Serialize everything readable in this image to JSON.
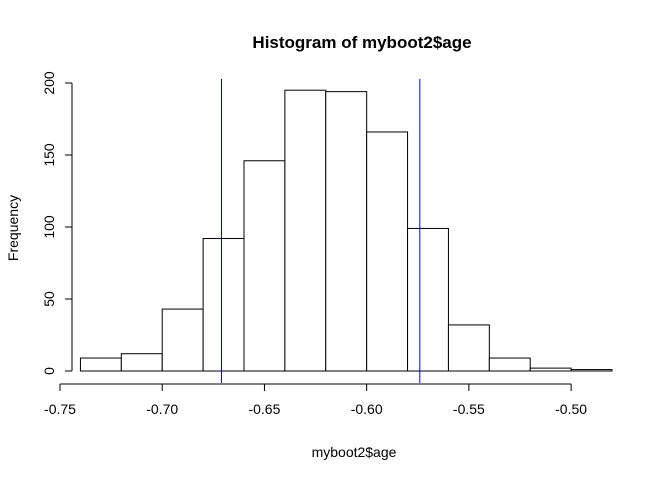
{
  "chart_data": {
    "type": "bar",
    "title": "Histogram of myboot2$age",
    "xlabel": "myboot2$age",
    "ylabel": "Frequency",
    "xlim": [
      -0.75,
      -0.48
    ],
    "ylim": [
      0,
      200
    ],
    "x_ticks": [
      -0.75,
      -0.7,
      -0.65,
      -0.6,
      -0.55,
      -0.5
    ],
    "x_tick_labels": [
      "-0.75",
      "-0.70",
      "-0.65",
      "-0.60",
      "-0.55",
      "-0.50"
    ],
    "y_ticks": [
      0,
      50,
      100,
      150,
      200
    ],
    "y_tick_labels": [
      "0",
      "50",
      "100",
      "150",
      "200"
    ],
    "bins": [
      {
        "x0": -0.74,
        "x1": -0.72,
        "count": 9
      },
      {
        "x0": -0.72,
        "x1": -0.7,
        "count": 12
      },
      {
        "x0": -0.7,
        "x1": -0.68,
        "count": 43
      },
      {
        "x0": -0.68,
        "x1": -0.66,
        "count": 92
      },
      {
        "x0": -0.66,
        "x1": -0.64,
        "count": 146
      },
      {
        "x0": -0.64,
        "x1": -0.62,
        "count": 195
      },
      {
        "x0": -0.62,
        "x1": -0.6,
        "count": 194
      },
      {
        "x0": -0.6,
        "x1": -0.58,
        "count": 166
      },
      {
        "x0": -0.58,
        "x1": -0.56,
        "count": 99
      },
      {
        "x0": -0.56,
        "x1": -0.54,
        "count": 32
      },
      {
        "x0": -0.54,
        "x1": -0.52,
        "count": 9
      },
      {
        "x0": -0.52,
        "x1": -0.5,
        "count": 2
      },
      {
        "x0": -0.5,
        "x1": -0.48,
        "count": 1
      }
    ],
    "vlines": [
      {
        "x": -0.671,
        "color": "#0000ff"
      },
      {
        "x": -0.574,
        "color": "#0000ff"
      }
    ],
    "bar_fill": "#ffffff",
    "bar_stroke": "#000000",
    "grid": false,
    "legend": "none"
  }
}
